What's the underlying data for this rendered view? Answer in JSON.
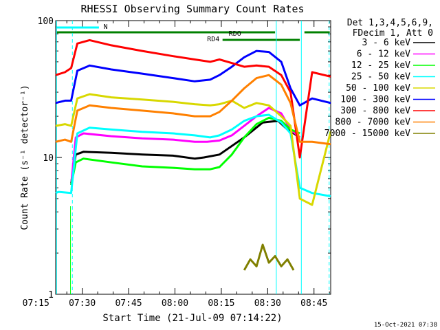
{
  "chart_data": {
    "type": "line",
    "title": "RHESSI Observing Summary Count Rates",
    "xlabel": "Start Time (21-Jul-09 07:14:22)",
    "ylabel": "Count Rate (s⁻¹ detector⁻¹)",
    "yscale": "log",
    "ylim": [
      1,
      100
    ],
    "xlim_minutes": [
      7.0,
      96.0
    ],
    "x_tick_labels": [
      "07:15",
      "07:30",
      "07:45",
      "08:00",
      "08:15",
      "08:30",
      "08:45"
    ],
    "x_tick_minutes": [
      0.6,
      15.6,
      30.6,
      45.6,
      60.6,
      75.6,
      90.6
    ],
    "y_tick_labels": [
      "1",
      "10",
      "100"
    ],
    "y_tick_values": [
      1,
      10,
      100
    ],
    "legend_header": [
      "Det 1,3,4,5,6,9,",
      "FDecim 1, Att 0"
    ],
    "legend_position": "right",
    "series": [
      {
        "name": "3 - 6 keV",
        "color": "#000000",
        "x": [
          12,
          13.5,
          16,
          25,
          35,
          45,
          52,
          55,
          60,
          68,
          74,
          79,
          82,
          84,
          86
        ],
        "y": [
          6.5,
          10.5,
          11,
          10.8,
          10.5,
          10.3,
          9.8,
          10,
          10.5,
          14,
          18,
          18.5,
          16,
          15,
          14
        ]
      },
      {
        "name": "6 - 12 keV",
        "color": "#ff00ff",
        "x": [
          12,
          13.5,
          16,
          25,
          35,
          45,
          52,
          56,
          60,
          64,
          68,
          72,
          76,
          80,
          83,
          86
        ],
        "y": [
          6.3,
          14,
          15,
          14.3,
          13.8,
          13.5,
          13,
          13,
          13.3,
          14.5,
          17,
          20,
          23,
          21,
          16,
          14
        ]
      },
      {
        "name": "12 - 25 keV",
        "color": "#00ff00",
        "x": [
          12,
          13.5,
          16,
          25,
          35,
          45,
          52,
          57,
          60,
          64,
          68,
          72,
          76,
          80,
          83,
          86
        ],
        "y": [
          6.3,
          9.2,
          9.8,
          9.2,
          8.6,
          8.4,
          8.2,
          8.2,
          8.5,
          10.5,
          14,
          17.5,
          19.5,
          18.5,
          16,
          15
        ]
      },
      {
        "name": "25 - 50 keV",
        "color": "#00ffff",
        "x": [
          0,
          8,
          12,
          14,
          18,
          25,
          35,
          45,
          52,
          57,
          60,
          64,
          68,
          72,
          76,
          80,
          83,
          86,
          90,
          96
        ],
        "y": [
          5.5,
          5.6,
          5.5,
          15,
          16.5,
          16,
          15.4,
          15,
          14.5,
          14,
          14.5,
          16,
          18.5,
          20,
          20.5,
          18,
          15,
          6,
          5.5,
          5.2
        ]
      },
      {
        "name": "50 - 100 keV",
        "color": "#d8d800",
        "x": [
          0,
          10,
          12,
          14,
          18,
          25,
          35,
          45,
          52,
          57,
          60,
          64,
          68,
          72,
          76,
          80,
          83,
          86,
          90,
          96
        ],
        "y": [
          17,
          17.5,
          17,
          27,
          29,
          27.5,
          26.5,
          25.5,
          24.5,
          24,
          24.5,
          26,
          23,
          25,
          24,
          20,
          17,
          5,
          4.5,
          15.5
        ]
      },
      {
        "name": "100 - 300 keV",
        "color": "#0000ff",
        "x": [
          0,
          10,
          12,
          14,
          18,
          25,
          35,
          45,
          52,
          57,
          60,
          64,
          68,
          72,
          76,
          80,
          83,
          86,
          90,
          96
        ],
        "y": [
          25,
          26,
          26,
          43,
          47,
          44,
          41,
          38,
          36,
          37,
          40,
          46,
          54,
          60,
          59,
          50,
          32,
          24,
          27,
          25
        ]
      },
      {
        "name": "300 - 800 keV",
        "color": "#ff0000",
        "x": [
          0,
          10,
          12,
          14,
          18,
          25,
          35,
          45,
          52,
          57,
          60,
          64,
          68,
          72,
          76,
          80,
          83,
          86,
          90,
          96
        ],
        "y": [
          40,
          42,
          45,
          68,
          72,
          66,
          60,
          55,
          52,
          50,
          52,
          49,
          46,
          47,
          46,
          40,
          30,
          10,
          42,
          39
        ]
      },
      {
        "name": "800 - 7000 keV",
        "color": "#ff8000",
        "x": [
          0,
          10,
          12,
          14,
          18,
          25,
          35,
          45,
          52,
          57,
          60,
          64,
          68,
          72,
          76,
          80,
          83,
          86,
          90,
          96
        ],
        "y": [
          13,
          13.5,
          13,
          22,
          24,
          23,
          22,
          21,
          20,
          20,
          21.5,
          26,
          32,
          38,
          40,
          34,
          25,
          13,
          13,
          12.5
        ]
      },
      {
        "name": "7000 - 15000 keV",
        "color": "#808000",
        "x": [
          68,
          70,
          72,
          74,
          76,
          78,
          80,
          82,
          84
        ],
        "y": [
          1.5,
          1.8,
          1.6,
          2.3,
          1.7,
          1.9,
          1.6,
          1.8,
          1.5
        ]
      }
    ],
    "annotations": {
      "attenuator_label": "N",
      "rd_labels": [
        "RD4",
        "RDO"
      ]
    }
  },
  "footer": {
    "timestamp": "15-Oct-2021 07:38"
  }
}
